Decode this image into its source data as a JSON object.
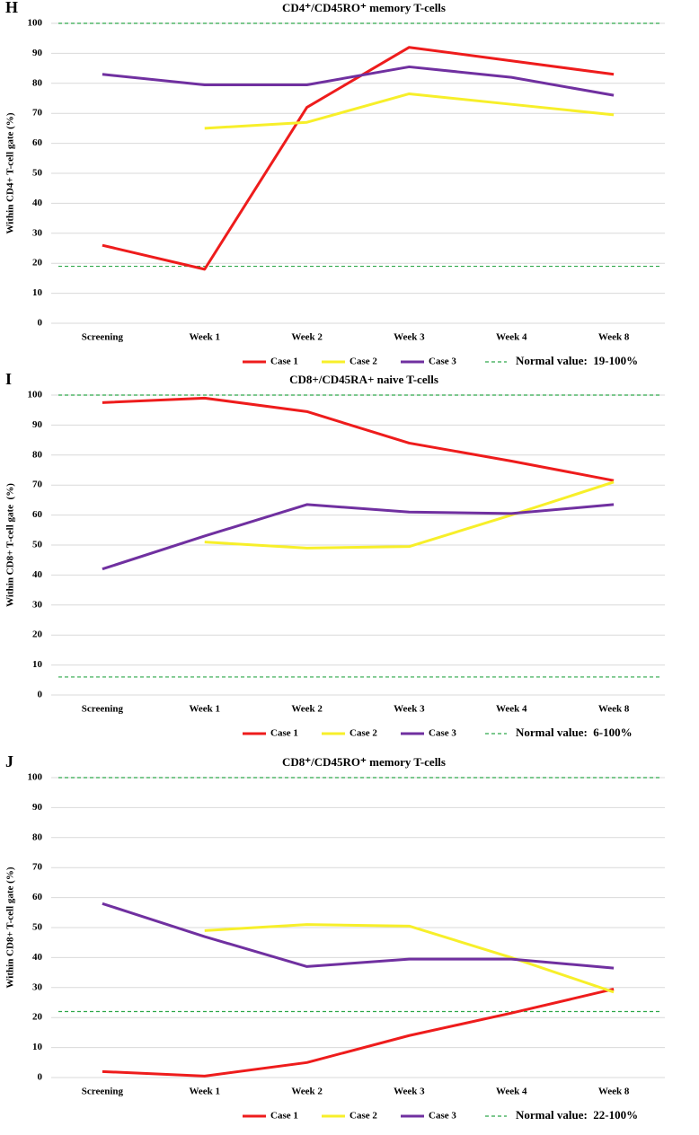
{
  "chart_data": [
    {
      "type": "line",
      "panel": "H",
      "title": "CD4⁺/CD45RO⁺ memory T-cells",
      "ylabel": "Within CD4+ T-cell gate (%)",
      "categories": [
        "Screening",
        "Week 1",
        "Week 2",
        "Week 3",
        "Week 4",
        "Week 8"
      ],
      "series": [
        {
          "name": "Case 1",
          "color": "#ee1c1c",
          "values": [
            26,
            18,
            72,
            92,
            87.5,
            83
          ]
        },
        {
          "name": "Case 2",
          "color": "#f7ef2a",
          "values": [
            null,
            65,
            67,
            76.5,
            73,
            69.5
          ]
        },
        {
          "name": "Case 3",
          "color": "#7030a0",
          "values": [
            83,
            79.5,
            79.5,
            85.5,
            82,
            76
          ]
        }
      ],
      "ylim": [
        0,
        100
      ],
      "yticks": [
        0,
        10,
        20,
        30,
        40,
        50,
        60,
        70,
        80,
        90,
        100
      ],
      "grid": true,
      "normal_range": [
        19,
        100
      ],
      "normal_color": "#2ea84a",
      "normal_label": "Normal value:  19-100%"
    },
    {
      "type": "line",
      "panel": "I",
      "title": "CD8+/CD45RA+ naive T-cells",
      "ylabel": "Within CD8+ T-cell gate  (%)",
      "categories": [
        "Screening",
        "Week 1",
        "Week 2",
        "Week 3",
        "Week 4",
        "Week 8"
      ],
      "series": [
        {
          "name": "Case 1",
          "color": "#ee1c1c",
          "values": [
            97.5,
            99,
            94.5,
            84,
            78,
            71.5
          ]
        },
        {
          "name": "Case 2",
          "color": "#f7ef2a",
          "values": [
            null,
            51,
            49,
            49.5,
            60,
            71
          ]
        },
        {
          "name": "Case 3",
          "color": "#7030a0",
          "values": [
            42,
            53,
            63.5,
            61,
            60.5,
            63.5
          ]
        }
      ],
      "ylim": [
        0,
        100
      ],
      "yticks": [
        0,
        10,
        20,
        30,
        40,
        50,
        60,
        70,
        80,
        90,
        100
      ],
      "grid": true,
      "normal_range": [
        6,
        100
      ],
      "normal_color": "#2ea84a",
      "normal_label": "Normal value:  6-100%"
    },
    {
      "type": "line",
      "panel": "J",
      "title": "CD8⁺/CD45RO⁺ memory T-cells",
      "ylabel": "Within CD8+ T-cell gate (%)",
      "categories": [
        "Screening",
        "Week 1",
        "Week 2",
        "Week 3",
        "Week 4",
        "Week 8"
      ],
      "series": [
        {
          "name": "Case 1",
          "color": "#ee1c1c",
          "values": [
            2,
            0.5,
            5,
            14,
            21.5,
            29.5
          ]
        },
        {
          "name": "Case 2",
          "color": "#f7ef2a",
          "values": [
            null,
            49,
            51,
            50.5,
            40,
            28.5
          ]
        },
        {
          "name": "Case 3",
          "color": "#7030a0",
          "values": [
            58,
            47,
            37,
            39.5,
            39.5,
            36.5
          ]
        }
      ],
      "ylim": [
        0,
        100
      ],
      "yticks": [
        0,
        10,
        20,
        30,
        40,
        50,
        60,
        70,
        80,
        90,
        100
      ],
      "grid": true,
      "normal_range": [
        22,
        100
      ],
      "normal_color": "#2ea84a",
      "normal_label": "Normal value:  22-100%"
    }
  ]
}
